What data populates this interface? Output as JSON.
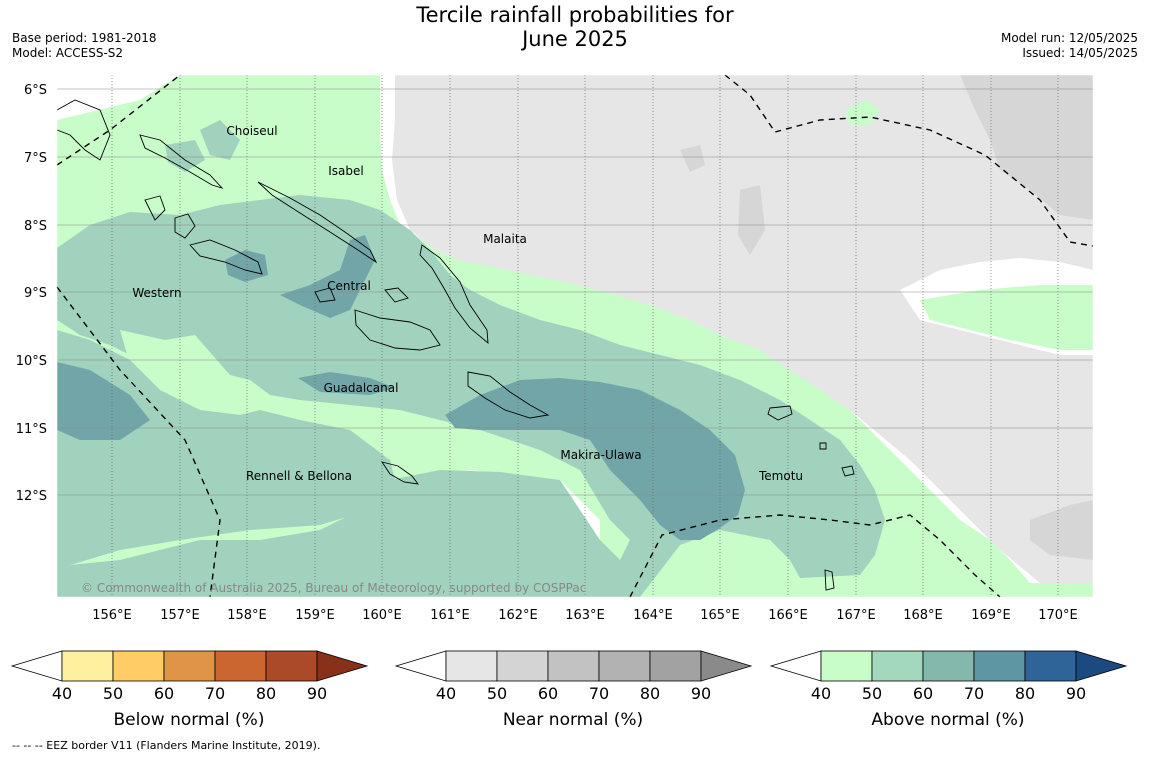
{
  "header": {
    "title_line1": "Tercile rainfall probabilities for",
    "title_line2": "June 2025",
    "base_period": "Base period: 1981-2018",
    "model": "Model: ACCESS-S2",
    "model_run": "Model run: 12/05/2025",
    "issued": "Issued: 14/05/2025"
  },
  "map": {
    "lat_labels": [
      "6°S",
      "7°S",
      "8°S",
      "9°S",
      "10°S",
      "11°S",
      "12°S"
    ],
    "lon_labels": [
      "156°E",
      "157°E",
      "158°E",
      "159°E",
      "160°E",
      "161°E",
      "162°E",
      "163°E",
      "164°E",
      "165°E",
      "166°E",
      "167°E",
      "168°E",
      "169°E",
      "170°E"
    ],
    "province_labels": [
      "Choiseul",
      "Isabel",
      "Malaita",
      "Western",
      "Central",
      "Guadalcanal",
      "Makira-Ulawa",
      "Temotu",
      "Rennell & Bellona"
    ],
    "copyright": "© Commonwealth of Australia 2025, Bureau of Meteorology, supported by COSPPac"
  },
  "colorbars": [
    {
      "title": "Below normal (%)",
      "ticks": [
        "40",
        "50",
        "60",
        "70",
        "80",
        "90"
      ],
      "colors": [
        "#fff0a0",
        "#ffcc66",
        "#e09448",
        "#cc6630",
        "#aa4a28",
        "#88301a"
      ]
    },
    {
      "title": "Near normal (%)",
      "ticks": [
        "40",
        "50",
        "60",
        "70",
        "80",
        "90"
      ],
      "colors": [
        "#e6e6e6",
        "#d4d4d4",
        "#c2c2c2",
        "#b2b2b2",
        "#a2a2a2",
        "#8a8a8a"
      ]
    },
    {
      "title": "Above normal (%)",
      "ticks": [
        "40",
        "50",
        "60",
        "70",
        "80",
        "90"
      ],
      "colors": [
        "#c8fcc8",
        "#a4d8bc",
        "#84b8ac",
        "#5e96a4",
        "#2e6498",
        "#1a4a80"
      ]
    }
  ],
  "footnote": "--  --  -- EEZ border V11 (Flanders Marine Institute, 2019).",
  "colors": {
    "above_40": "#c8fcc8",
    "above_50": "#a0d2be",
    "above_60": "#72a5a8",
    "near_40": "#e6e6e6",
    "near_50": "#d6d6d6"
  }
}
